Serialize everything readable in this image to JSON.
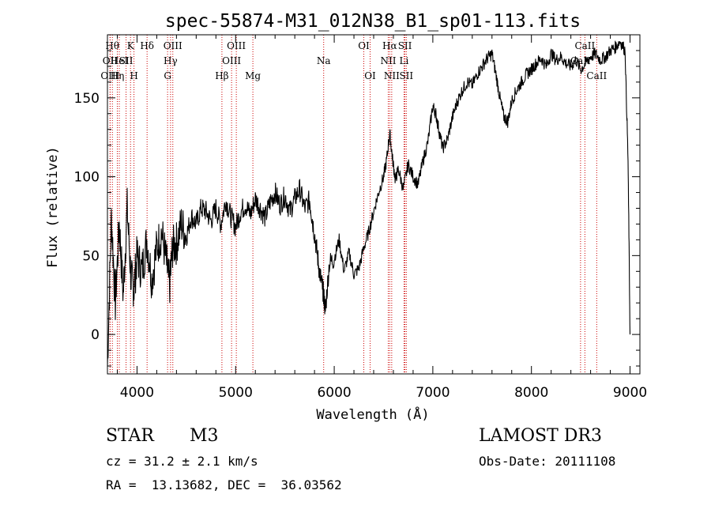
{
  "chart_data": {
    "type": "line",
    "title": "spec-55874-M31_012N38_B1_sp01-113.fits",
    "xlabel": "Wavelength (Å)",
    "ylabel": "Flux (relative)",
    "xlim": [
      3700,
      9100
    ],
    "ylim": [
      -25,
      190
    ],
    "x_ticks": [
      {
        "value": 4000,
        "label": "4000"
      },
      {
        "value": 5000,
        "label": "5000"
      },
      {
        "value": 6000,
        "label": "6000"
      },
      {
        "value": 7000,
        "label": "7000"
      },
      {
        "value": 8000,
        "label": "8000"
      },
      {
        "value": 9000,
        "label": "9000"
      }
    ],
    "y_ticks": [
      {
        "value": 0,
        "label": "0"
      },
      {
        "value": 50,
        "label": "50"
      },
      {
        "value": 100,
        "label": "100"
      },
      {
        "value": 150,
        "label": "150"
      }
    ],
    "grid": false,
    "spectrum": {
      "name": "flux",
      "x": [
        3700,
        3740,
        3780,
        3820,
        3860,
        3900,
        3940,
        3970,
        4000,
        4050,
        4100,
        4150,
        4200,
        4250,
        4300,
        4330,
        4360,
        4400,
        4450,
        4500,
        4550,
        4600,
        4650,
        4700,
        4750,
        4800,
        4850,
        4900,
        4950,
        5000,
        5050,
        5100,
        5150,
        5200,
        5250,
        5300,
        5350,
        5400,
        5450,
        5500,
        5550,
        5600,
        5650,
        5700,
        5750,
        5780,
        5820,
        5850,
        5880,
        5893,
        5910,
        5950,
        6000,
        6050,
        6100,
        6150,
        6200,
        6250,
        6300,
        6350,
        6400,
        6450,
        6500,
        6530,
        6563,
        6590,
        6620,
        6650,
        6700,
        6750,
        6800,
        6850,
        6900,
        6950,
        7000,
        7030,
        7060,
        7100,
        7150,
        7200,
        7250,
        7300,
        7350,
        7400,
        7450,
        7500,
        7550,
        7600,
        7640,
        7680,
        7720,
        7760,
        7800,
        7850,
        7900,
        7950,
        8000,
        8050,
        8100,
        8150,
        8200,
        8250,
        8300,
        8350,
        8400,
        8450,
        8500,
        8550,
        8600,
        8650,
        8700,
        8750,
        8800,
        8850,
        8900,
        8950,
        8980,
        9000
      ],
      "y": [
        -20,
        75,
        20,
        70,
        25,
        80,
        35,
        30,
        50,
        40,
        60,
        35,
        55,
        65,
        45,
        30,
        55,
        58,
        70,
        62,
        75,
        70,
        80,
        78,
        72,
        80,
        70,
        85,
        75,
        68,
        78,
        82,
        76,
        86,
        80,
        74,
        84,
        90,
        82,
        88,
        78,
        86,
        92,
        80,
        85,
        72,
        55,
        40,
        30,
        25,
        15,
        45,
        48,
        60,
        40,
        52,
        38,
        42,
        55,
        65,
        78,
        90,
        100,
        110,
        128,
        112,
        98,
        105,
        92,
        108,
        100,
        95,
        110,
        122,
        145,
        140,
        130,
        118,
        124,
        138,
        148,
        155,
        160,
        158,
        165,
        170,
        175,
        178,
        165,
        150,
        138,
        135,
        148,
        155,
        160,
        165,
        168,
        172,
        175,
        170,
        178,
        174,
        176,
        172,
        170,
        174,
        168,
        172,
        176,
        178,
        174,
        176,
        180,
        182,
        186,
        180,
        110,
        0
      ]
    },
    "lines": [
      {
        "x": 3750,
        "label": "Hθ",
        "row": 0
      },
      {
        "x": 3727,
        "label": "OII",
        "row": 1
      },
      {
        "x": 3727,
        "label": "OIII",
        "row": 2
      },
      {
        "x": 3800,
        "label": "Hη",
        "row": 2
      },
      {
        "x": 3820,
        "label": "HeI",
        "row": 1
      },
      {
        "x": 3889,
        "label": "SII",
        "row": 1
      },
      {
        "x": 3934,
        "label": "K",
        "row": 0
      },
      {
        "x": 3969,
        "label": "H",
        "row": 2
      },
      {
        "x": 4102,
        "label": "Hδ",
        "row": 0
      },
      {
        "x": 4310,
        "label": "G",
        "row": 2
      },
      {
        "x": 4340,
        "label": "Hγ",
        "row": 1
      },
      {
        "x": 4363,
        "label": "OIII",
        "row": 0
      },
      {
        "x": 4861,
        "label": "Hβ",
        "row": 2
      },
      {
        "x": 4959,
        "label": "OIII",
        "row": 1
      },
      {
        "x": 5007,
        "label": "OIII",
        "row": 0
      },
      {
        "x": 5175,
        "label": "Mg",
        "row": 2
      },
      {
        "x": 5893,
        "label": "Na",
        "row": 1
      },
      {
        "x": 6300,
        "label": "OI",
        "row": 0
      },
      {
        "x": 6364,
        "label": "OI",
        "row": 2
      },
      {
        "x": 6548,
        "label": "NII",
        "row": 1
      },
      {
        "x": 6563,
        "label": "Hα",
        "row": 0
      },
      {
        "x": 6583,
        "label": "NII",
        "row": 2
      },
      {
        "x": 6708,
        "label": "Li",
        "row": 1
      },
      {
        "x": 6717,
        "label": "SII",
        "row": 0
      },
      {
        "x": 6731,
        "label": "SII",
        "row": 2
      },
      {
        "x": 8498,
        "label": "CaII",
        "row": 1
      },
      {
        "x": 8542,
        "label": "CaII",
        "row": 0
      },
      {
        "x": 8662,
        "label": "CaII",
        "row": 2
      }
    ],
    "line_color": "#cc0000",
    "spectrum_color": "#000000"
  },
  "info": {
    "object_class": "STAR",
    "subclass": "M3",
    "survey": "LAMOST DR3",
    "redshift_text": "cz = 31.2 ± 2.1 km/s",
    "obs_date_text": "Obs-Date: 20111108",
    "coords_text": "RA =  13.13682, DEC =  36.03562"
  }
}
